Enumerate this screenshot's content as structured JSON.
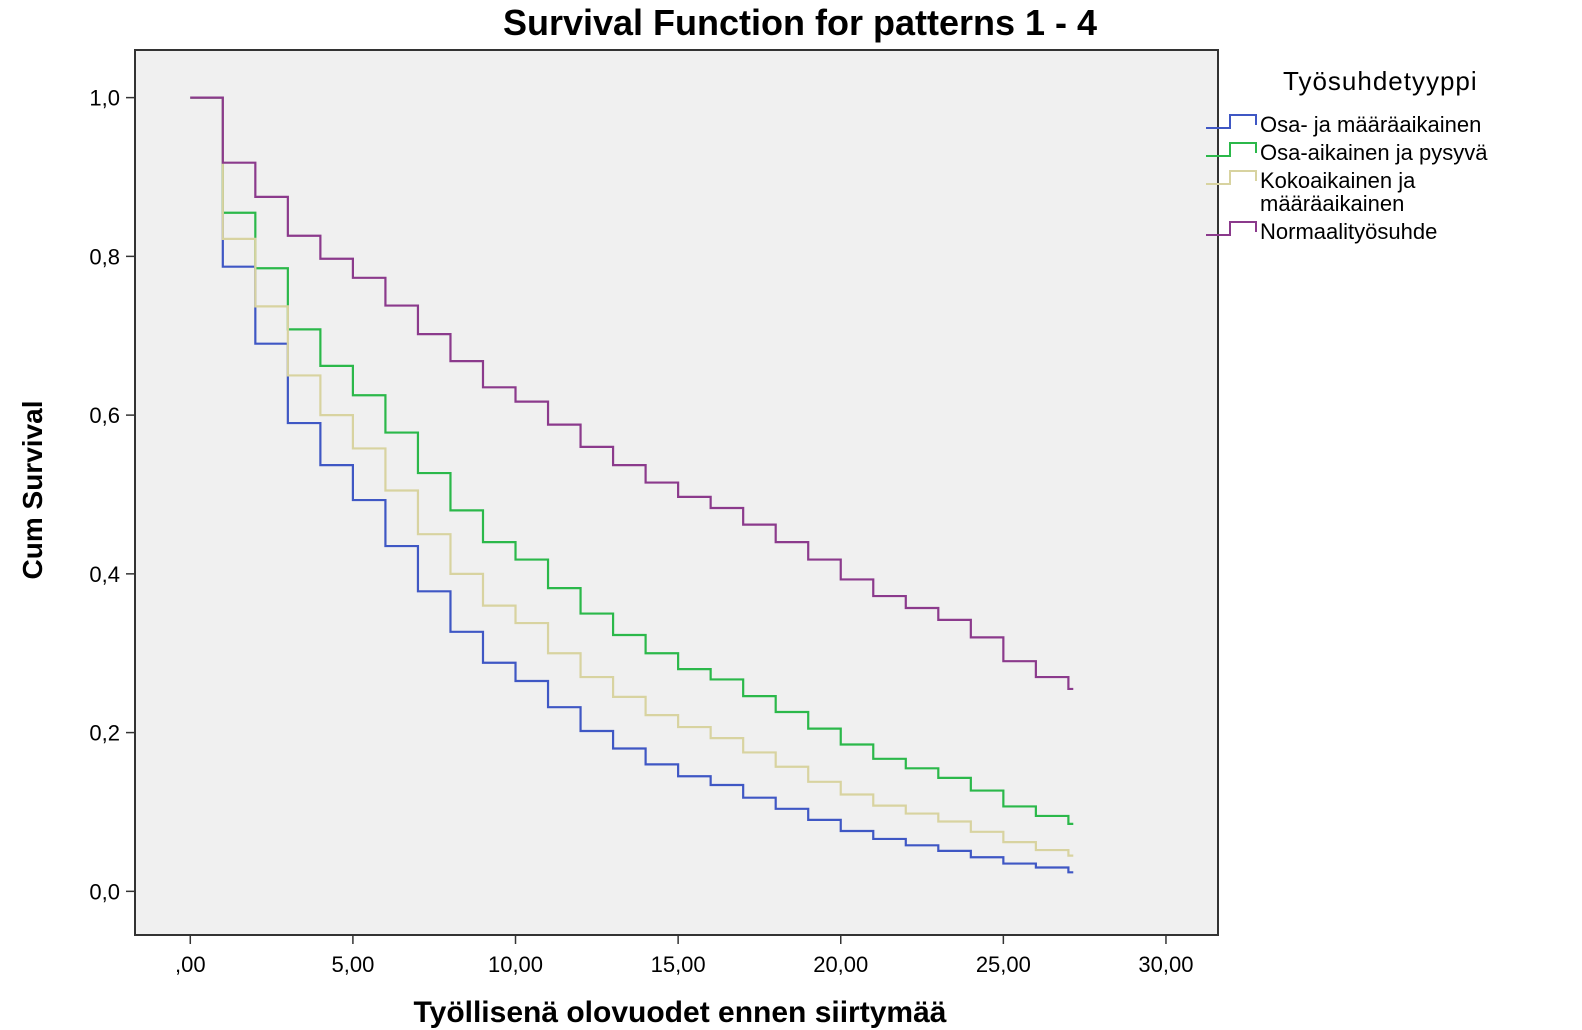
{
  "chart_data": {
    "type": "line",
    "title": "Survival Function for patterns 1 - 4",
    "xlabel": "Työllisenä olovuodet ennen siirtymää",
    "ylabel": "Cum Survival",
    "xlim": [
      -1.7,
      31.6
    ],
    "ylim": [
      -0.055,
      1.06
    ],
    "x_ticks": [
      0,
      5,
      10,
      15,
      20,
      25,
      30
    ],
    "x_tick_labels": [
      ",00",
      "5,00",
      "10,00",
      "15,00",
      "20,00",
      "25,00",
      "30,00"
    ],
    "y_ticks": [
      0,
      0.2,
      0.4,
      0.6,
      0.8,
      1.0
    ],
    "y_tick_labels": [
      "0,0",
      "0,2",
      "0,4",
      "0,6",
      "0,8",
      "1,0"
    ],
    "grid": false,
    "step": true,
    "legend": {
      "title": "Työsuhdetyyppi",
      "placement": "right"
    },
    "plot_background": "#f0f0f0",
    "x": [
      0,
      1,
      2,
      3,
      4,
      5,
      6,
      7,
      8,
      9,
      10,
      11,
      12,
      13,
      14,
      15,
      16,
      17,
      18,
      19,
      20,
      21,
      22,
      23,
      24,
      25,
      26,
      27
    ],
    "series": [
      {
        "name": "Osa- ja määräaikainen",
        "label_lines": [
          "Osa- ja määräaikainen"
        ],
        "color": "#3f57c4",
        "values": [
          1.0,
          0.787,
          0.69,
          0.59,
          0.537,
          0.493,
          0.435,
          0.378,
          0.327,
          0.288,
          0.265,
          0.232,
          0.202,
          0.18,
          0.16,
          0.145,
          0.134,
          0.118,
          0.104,
          0.09,
          0.076,
          0.066,
          0.058,
          0.051,
          0.043,
          0.035,
          0.03,
          0.024
        ]
      },
      {
        "name": "Osa-aikainen ja pysyvä",
        "label_lines": [
          "Osa-aikainen ja pysyvä"
        ],
        "color": "#2bb84a",
        "values": [
          1.0,
          0.855,
          0.785,
          0.708,
          0.662,
          0.625,
          0.578,
          0.527,
          0.48,
          0.44,
          0.418,
          0.382,
          0.35,
          0.323,
          0.3,
          0.28,
          0.267,
          0.246,
          0.226,
          0.205,
          0.185,
          0.167,
          0.155,
          0.143,
          0.127,
          0.107,
          0.095,
          0.085
        ]
      },
      {
        "name": "Kokoaikainen ja määräaikainen",
        "label_lines": [
          "Kokoaikainen ja",
          "määräaikainen"
        ],
        "color": "#d8d3a0",
        "values": [
          1.0,
          0.822,
          0.737,
          0.65,
          0.6,
          0.558,
          0.505,
          0.45,
          0.4,
          0.36,
          0.338,
          0.3,
          0.27,
          0.245,
          0.222,
          0.207,
          0.193,
          0.175,
          0.157,
          0.138,
          0.122,
          0.108,
          0.098,
          0.088,
          0.075,
          0.062,
          0.052,
          0.045
        ]
      },
      {
        "name": "Normaalityösuhde",
        "label_lines": [
          "Normaalityösuhde"
        ],
        "color": "#8b3a8c",
        "values": [
          1.0,
          0.918,
          0.875,
          0.826,
          0.797,
          0.773,
          0.738,
          0.702,
          0.668,
          0.635,
          0.617,
          0.588,
          0.56,
          0.537,
          0.515,
          0.497,
          0.483,
          0.462,
          0.44,
          0.418,
          0.393,
          0.372,
          0.357,
          0.342,
          0.32,
          0.29,
          0.27,
          0.255
        ]
      }
    ]
  }
}
